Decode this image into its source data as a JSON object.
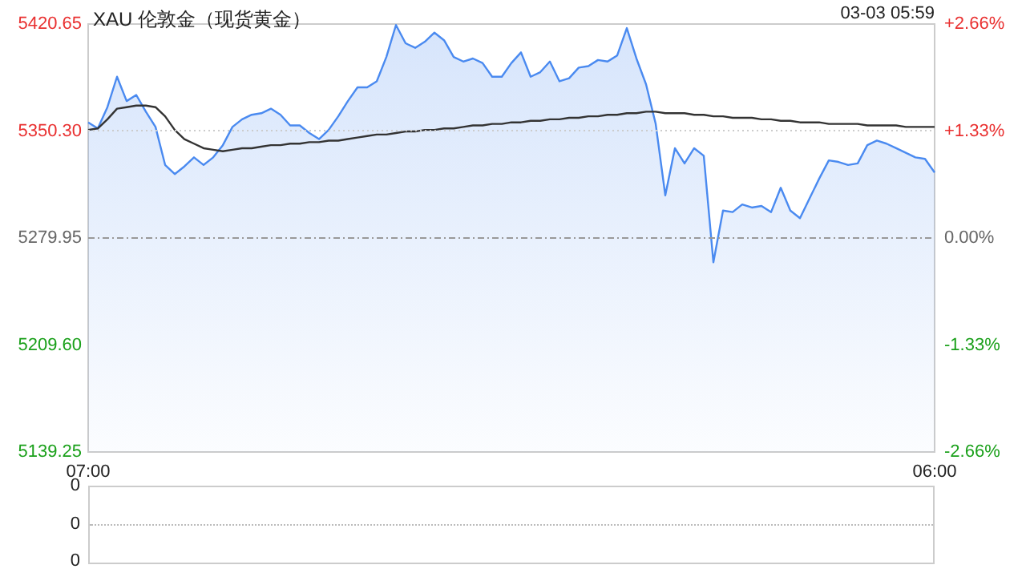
{
  "chart_data": [
    {
      "type": "line",
      "title": "XAU 伦敦金（现货黄金）",
      "annotations": [
        "03-03 05:59"
      ],
      "marker": "none",
      "categories": [
        "07:00",
        null,
        null,
        null,
        null,
        null,
        null,
        null,
        null,
        null,
        null,
        null,
        null,
        null,
        null,
        null,
        null,
        null,
        null,
        null,
        null,
        null,
        null,
        null,
        null,
        null,
        null,
        null,
        null,
        null,
        null,
        null,
        null,
        null,
        null,
        null,
        null,
        null,
        null,
        null,
        null,
        null,
        null,
        null,
        null,
        null,
        null,
        null,
        null,
        null,
        null,
        null,
        null,
        null,
        null,
        null,
        null,
        null,
        null,
        null,
        null,
        null,
        null,
        null,
        null,
        null,
        null,
        null,
        null,
        null,
        null,
        null,
        null,
        null,
        null,
        null,
        null,
        null,
        null,
        null,
        null,
        null,
        null,
        null,
        null,
        null,
        null,
        null,
        "06:00"
      ],
      "ylim": [
        5139.25,
        5420.65
      ],
      "yticks": [
        {
          "value": 5139.25,
          "label": "5139.25"
        },
        {
          "value": 5209.6,
          "label": "5209.60"
        },
        {
          "value": 5279.95,
          "label": "5279.95"
        },
        {
          "value": 5350.3,
          "label": "5350.30"
        },
        {
          "value": 5420.65,
          "label": "5420.65"
        }
      ],
      "y2lim": [
        -2.66,
        2.66
      ],
      "y2ticks": [
        {
          "value": -2.66,
          "label": "-2.66%"
        },
        {
          "value": -1.33,
          "label": "-1.33%"
        },
        {
          "value": 0,
          "label": "0.00%"
        },
        {
          "value": 1.33,
          "label": "+1.33%"
        },
        {
          "value": 2.66,
          "label": "+2.66%"
        }
      ],
      "ref_lines": [
        {
          "axis": "y",
          "value": 5350.3,
          "color": "#cccccc",
          "line_style": "dotted"
        },
        {
          "axis": "y",
          "value": 5279.95,
          "color": "#999999",
          "line_style": "dashed"
        }
      ],
      "series": [
        {
          "type": "area",
          "color": "#4a8af0",
          "values": [
            5356,
            5352,
            5366,
            5386,
            5370,
            5374,
            5363,
            5353,
            5328,
            5322,
            5327,
            5333,
            5328,
            5333,
            5341,
            5353,
            5358,
            5361,
            5362,
            5365,
            5361,
            5354,
            5354,
            5349,
            5345,
            5351,
            5360,
            5370,
            5379,
            5379,
            5383,
            5399,
            5420,
            5408,
            5405,
            5409,
            5415,
            5410,
            5399,
            5396,
            5398,
            5395,
            5386,
            5386,
            5395,
            5402,
            5386,
            5389,
            5396,
            5383,
            5385,
            5392,
            5393,
            5397,
            5396,
            5400,
            5418,
            5398,
            5381,
            5355,
            5308,
            5339,
            5329,
            5339,
            5334,
            5264,
            5298,
            5297,
            5302,
            5300,
            5301,
            5297,
            5313,
            5298,
            5293,
            5306,
            5319,
            5331,
            5330,
            5328,
            5329,
            5341,
            5344,
            5342,
            5339,
            5336,
            5333,
            5332,
            5323
          ]
        },
        {
          "type": "line",
          "color": "#333333",
          "values": [
            5351,
            5352,
            5358,
            5365,
            5366,
            5367,
            5367,
            5366,
            5360,
            5351,
            5345,
            5342,
            5339,
            5338,
            5337,
            5338,
            5339,
            5339,
            5340,
            5341,
            5341,
            5342,
            5342,
            5343,
            5343,
            5344,
            5344,
            5345,
            5346,
            5347,
            5348,
            5348,
            5349,
            5350,
            5350,
            5351,
            5351,
            5352,
            5352,
            5353,
            5354,
            5354,
            5355,
            5355,
            5356,
            5356,
            5357,
            5357,
            5358,
            5358,
            5359,
            5359,
            5360,
            5360,
            5361,
            5361,
            5362,
            5362,
            5363,
            5363,
            5362,
            5362,
            5362,
            5361,
            5361,
            5360,
            5360,
            5359,
            5359,
            5359,
            5358,
            5358,
            5357,
            5357,
            5356,
            5356,
            5356,
            5355,
            5355,
            5355,
            5355,
            5354,
            5354,
            5354,
            5354,
            5353,
            5353,
            5353,
            5353
          ]
        }
      ]
    },
    {
      "type": "other",
      "annotations": [
        "0",
        "0",
        "0"
      ]
    }
  ]
}
